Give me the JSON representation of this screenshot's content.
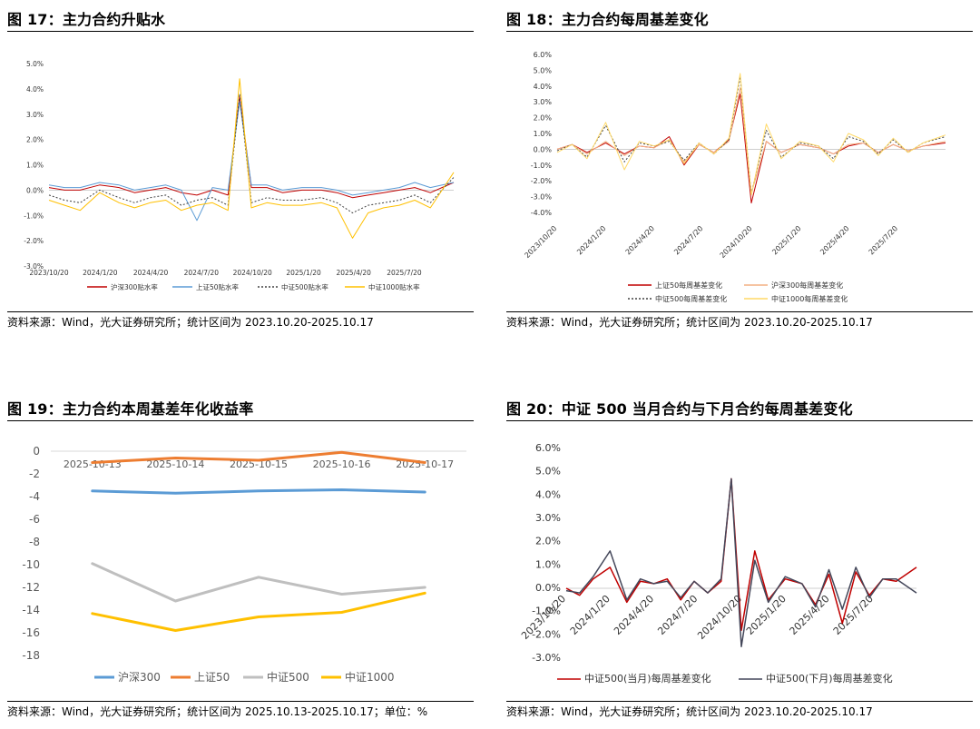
{
  "panels": [
    {
      "title": "图 17：主力合约升贴水",
      "source": "资料来源：Wind，光大证券研究所；统计区间为 2023.10.20-2025.10.17"
    },
    {
      "title": "图 18：主力合约每周基差变化",
      "source": "资料来源：Wind，光大证券研究所；统计区间为 2023.10.20-2025.10.17"
    },
    {
      "title": "图 19：主力合约本周基差年化收益率",
      "source": "资料来源：Wind，光大证券研究所；统计区间为 2025.10.13-2025.10.17；单位：%"
    },
    {
      "title": "图 20：中证 500 当月合约与下月合约每周基差变化",
      "source": "资料来源：Wind，光大证券研究所；统计区间为 2023.10.20-2025.10.17"
    }
  ],
  "chart_data": [
    {
      "type": "line",
      "ylim": [
        -3.0,
        5.0
      ],
      "ytick_labels": [
        "5.0%",
        "4.0%",
        "3.0%",
        "2.0%",
        "1.0%",
        "0.0%",
        "-1.0%",
        "-2.0%",
        "-3.0%"
      ],
      "x_tick_labels": [
        "2023/10/20",
        "2024/1/20",
        "2024/4/20",
        "2024/7/20",
        "2024/10/20",
        "2025/1/20",
        "2025/4/20",
        "2025/7/20"
      ],
      "x": [
        "2023/10/20",
        "2023/11/17",
        "2023/12/15",
        "2024/1/19",
        "2024/2/23",
        "2024/3/22",
        "2024/4/19",
        "2024/5/17",
        "2024/6/14",
        "2024/7/12",
        "2024/8/9",
        "2024/9/6",
        "2024/9/27",
        "2024/10/18",
        "2024/11/15",
        "2024/12/13",
        "2025/1/17",
        "2025/2/21",
        "2025/3/21",
        "2025/4/18",
        "2025/5/16",
        "2025/6/13",
        "2025/7/11",
        "2025/8/8",
        "2025/9/5",
        "2025/10/17"
      ],
      "series": [
        {
          "name": "沪深300贴水率",
          "color": "#c00000",
          "dash": "",
          "values": [
            0.1,
            0.0,
            0.0,
            0.2,
            0.1,
            -0.1,
            0.0,
            0.1,
            -0.1,
            -0.2,
            0.0,
            -0.2,
            3.7,
            0.1,
            0.1,
            -0.1,
            0.0,
            0.0,
            -0.1,
            -0.3,
            -0.2,
            -0.1,
            0.0,
            0.1,
            -0.1,
            0.3
          ]
        },
        {
          "name": "上证50贴水率",
          "color": "#5b9bd5",
          "dash": "",
          "values": [
            0.2,
            0.1,
            0.1,
            0.3,
            0.2,
            0.0,
            0.1,
            0.2,
            0.0,
            -1.2,
            0.1,
            0.0,
            3.5,
            0.2,
            0.2,
            0.0,
            0.1,
            0.1,
            0.0,
            -0.2,
            -0.1,
            0.0,
            0.1,
            0.3,
            0.1,
            0.3
          ]
        },
        {
          "name": "中证500贴水率",
          "color": "#404040",
          "dash": "2,2",
          "values": [
            -0.2,
            -0.4,
            -0.5,
            0.0,
            -0.3,
            -0.5,
            -0.3,
            -0.2,
            -0.6,
            -0.4,
            -0.3,
            -0.6,
            3.8,
            -0.5,
            -0.3,
            -0.4,
            -0.4,
            -0.3,
            -0.5,
            -0.9,
            -0.6,
            -0.5,
            -0.4,
            -0.2,
            -0.5,
            0.5
          ]
        },
        {
          "name": "中证1000贴水率",
          "color": "#ffc000",
          "dash": "",
          "values": [
            -0.4,
            -0.6,
            -0.8,
            -0.1,
            -0.5,
            -0.7,
            -0.5,
            -0.4,
            -0.8,
            -0.6,
            -0.5,
            -0.8,
            4.4,
            -0.7,
            -0.5,
            -0.6,
            -0.6,
            -0.5,
            -0.7,
            -1.9,
            -0.9,
            -0.7,
            -0.6,
            -0.4,
            -0.7,
            0.7
          ]
        }
      ]
    },
    {
      "type": "line",
      "ylim": [
        -4.0,
        6.0
      ],
      "ytick_labels": [
        "6.0%",
        "5.0%",
        "4.0%",
        "3.0%",
        "2.0%",
        "1.0%",
        "0.0%",
        "-1.0%",
        "-2.0%",
        "-3.0%",
        "-4.0%"
      ],
      "x_tick_labels": [
        "2023/10/20",
        "2024/1/20",
        "2024/4/20",
        "2024/7/20",
        "2024/10/20",
        "2025/1/20",
        "2025/4/20",
        "2025/7/20"
      ],
      "x": [
        "2023/10/20",
        "2023/11/17",
        "2023/12/15",
        "2024/1/19",
        "2024/2/23",
        "2024/3/22",
        "2024/4/19",
        "2024/5/17",
        "2024/6/14",
        "2024/7/12",
        "2024/8/9",
        "2024/9/6",
        "2024/9/27",
        "2024/10/18",
        "2024/11/15",
        "2024/12/13",
        "2025/1/17",
        "2025/2/21",
        "2025/3/21",
        "2025/4/18",
        "2025/5/16",
        "2025/6/13",
        "2025/7/11",
        "2025/8/8",
        "2025/9/5",
        "2025/10/17"
      ],
      "series": [
        {
          "name": "上证50每周基差变化",
          "color": "#c00000",
          "dash": "",
          "values": [
            0.0,
            0.3,
            -0.2,
            0.4,
            -0.3,
            0.2,
            0.1,
            0.8,
            -1.0,
            0.3,
            -0.2,
            0.6,
            3.5,
            -3.4,
            0.5,
            -0.2,
            0.3,
            0.1,
            -0.3,
            0.2,
            0.4,
            -0.2,
            0.3,
            -0.1,
            0.2,
            0.4
          ]
        },
        {
          "name": "沪深300每周基差变化",
          "color": "#f4b183",
          "dash": "",
          "values": [
            0.0,
            0.3,
            -0.3,
            0.5,
            -0.4,
            0.2,
            0.1,
            0.6,
            -0.8,
            0.3,
            -0.2,
            0.5,
            3.9,
            -2.8,
            0.5,
            -0.2,
            0.3,
            0.1,
            -0.3,
            0.3,
            0.4,
            -0.2,
            0.3,
            -0.1,
            0.2,
            0.5
          ]
        },
        {
          "name": "中证500每周基差变化",
          "color": "#404040",
          "dash": "2,2",
          "values": [
            -0.1,
            0.3,
            -0.5,
            1.5,
            -0.8,
            0.4,
            0.2,
            0.5,
            -0.7,
            0.4,
            -0.3,
            0.6,
            4.6,
            -2.8,
            1.2,
            -0.5,
            0.4,
            0.2,
            -0.6,
            0.8,
            0.5,
            -0.3,
            0.6,
            -0.2,
            0.4,
            0.8
          ]
        },
        {
          "name": "中证1000每周基差变化",
          "color": "#ffd966",
          "dash": "",
          "values": [
            -0.2,
            0.3,
            -0.6,
            1.7,
            -1.3,
            0.5,
            0.2,
            0.6,
            -0.9,
            0.4,
            -0.3,
            0.7,
            4.8,
            -2.9,
            1.6,
            -0.6,
            0.5,
            0.2,
            -0.8,
            1.0,
            0.6,
            -0.4,
            0.7,
            -0.2,
            0.4,
            0.9
          ]
        }
      ]
    },
    {
      "type": "line",
      "categories": [
        "2025-10-13",
        "2025-10-14",
        "2025-10-15",
        "2025-10-16",
        "2025-10-17"
      ],
      "ylim": [
        -18,
        0
      ],
      "ytick_labels": [
        "0",
        "-2",
        "-4",
        "-6",
        "-8",
        "-10",
        "-12",
        "-14",
        "-16",
        "-18"
      ],
      "series": [
        {
          "name": "沪深300",
          "color": "#5b9bd5",
          "values": [
            -3.5,
            -3.7,
            -3.5,
            -3.4,
            -3.6
          ]
        },
        {
          "name": "上证50",
          "color": "#ed7d31",
          "values": [
            -1.0,
            -0.6,
            -0.8,
            -0.1,
            -1.0
          ]
        },
        {
          "name": "中证500",
          "color": "#bfbfbf",
          "values": [
            -9.9,
            -13.2,
            -11.1,
            -12.6,
            -12.0
          ]
        },
        {
          "name": "中证1000",
          "color": "#ffc000",
          "values": [
            -14.3,
            -15.8,
            -14.6,
            -14.2,
            -12.5
          ]
        }
      ]
    },
    {
      "type": "line",
      "ylim": [
        -3.0,
        6.0
      ],
      "ytick_labels": [
        "6.0%",
        "5.0%",
        "4.0%",
        "3.0%",
        "2.0%",
        "1.0%",
        "0.0%",
        "-1.0%",
        "-2.0%",
        "-3.0%"
      ],
      "x_tick_labels": [
        "2023/10/20",
        "2024/1/20",
        "2024/4/20",
        "2024/7/20",
        "2024/10/20",
        "2025/1/20",
        "2025/4/20",
        "2025/7/20"
      ],
      "x": [
        "2023/10/20",
        "2023/11/17",
        "2023/12/15",
        "2024/1/19",
        "2024/2/23",
        "2024/3/22",
        "2024/4/19",
        "2024/5/17",
        "2024/6/14",
        "2024/7/12",
        "2024/8/9",
        "2024/9/6",
        "2024/9/27",
        "2024/10/18",
        "2024/11/15",
        "2024/12/13",
        "2025/1/17",
        "2025/2/21",
        "2025/3/21",
        "2025/4/18",
        "2025/5/16",
        "2025/6/13",
        "2025/7/11",
        "2025/8/8",
        "2025/9/5",
        "2025/10/17"
      ],
      "series": [
        {
          "name": "中证500(当月)每周基差变化",
          "color": "#c00000",
          "values": [
            0.0,
            -0.3,
            0.4,
            0.9,
            -0.6,
            0.3,
            0.2,
            0.4,
            -0.5,
            0.3,
            -0.2,
            0.3,
            4.7,
            -1.8,
            1.6,
            -0.5,
            0.4,
            0.2,
            -0.7,
            0.6,
            -1.5,
            0.7,
            -0.3,
            0.4,
            0.3,
            0.9
          ]
        },
        {
          "name": "中证500(下月)每周基差变化",
          "color": "#44475a",
          "values": [
            -0.1,
            -0.2,
            0.5,
            1.6,
            -0.5,
            0.4,
            0.2,
            0.3,
            -0.4,
            0.3,
            -0.2,
            0.4,
            4.7,
            -2.5,
            1.2,
            -0.6,
            0.5,
            0.2,
            -0.8,
            0.8,
            -0.9,
            0.9,
            -0.4,
            0.4,
            0.4,
            -0.2
          ]
        }
      ]
    }
  ]
}
